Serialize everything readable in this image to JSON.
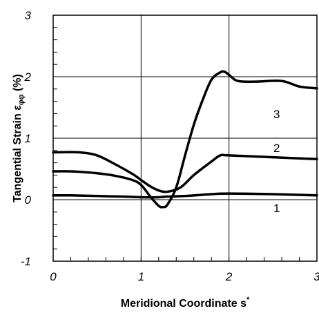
{
  "chart_data": {
    "type": "line",
    "xlabel": "Meridional Coordinate s",
    "xlabel_superscript": "*",
    "ylabel": "Tangential Strain  ε",
    "ylabel_subscript": "φφ",
    "ylabel_unit": " (%)",
    "xlim": [
      0,
      3
    ],
    "ylim": [
      -1,
      3
    ],
    "x_ticks": [
      "0",
      "1",
      "2",
      "3"
    ],
    "y_ticks": [
      "-1",
      "0",
      "1",
      "2",
      "3"
    ],
    "grid": true,
    "series": [
      {
        "name": "1",
        "x": [
          0,
          0.2,
          0.5,
          0.8,
          1.0,
          1.2,
          1.3,
          1.5,
          1.8,
          2.0,
          2.5,
          3.0
        ],
        "y": [
          0.07,
          0.07,
          0.06,
          0.05,
          0.04,
          0.04,
          0.05,
          0.06,
          0.09,
          0.1,
          0.09,
          0.07
        ]
      },
      {
        "name": "2",
        "x": [
          0,
          0.3,
          0.5,
          0.7,
          0.9,
          1.0,
          1.1,
          1.2,
          1.3,
          1.45,
          1.6,
          1.8,
          1.9,
          2.0,
          2.5,
          3.0
        ],
        "y": [
          0.77,
          0.77,
          0.72,
          0.58,
          0.42,
          0.32,
          0.22,
          0.15,
          0.13,
          0.2,
          0.4,
          0.62,
          0.72,
          0.72,
          0.69,
          0.66
        ]
      },
      {
        "name": "3",
        "x": [
          0,
          0.2,
          0.5,
          0.7,
          0.9,
          1.0,
          1.1,
          1.2,
          1.25,
          1.3,
          1.4,
          1.5,
          1.6,
          1.7,
          1.8,
          1.9,
          1.95,
          2.0,
          2.1,
          2.3,
          2.6,
          2.8,
          3.0
        ],
        "y": [
          0.46,
          0.46,
          0.43,
          0.39,
          0.32,
          0.24,
          0.06,
          -0.1,
          -0.12,
          -0.08,
          0.2,
          0.72,
          1.22,
          1.62,
          1.95,
          2.07,
          2.08,
          2.03,
          1.93,
          1.92,
          1.93,
          1.84,
          1.81
        ]
      }
    ]
  }
}
